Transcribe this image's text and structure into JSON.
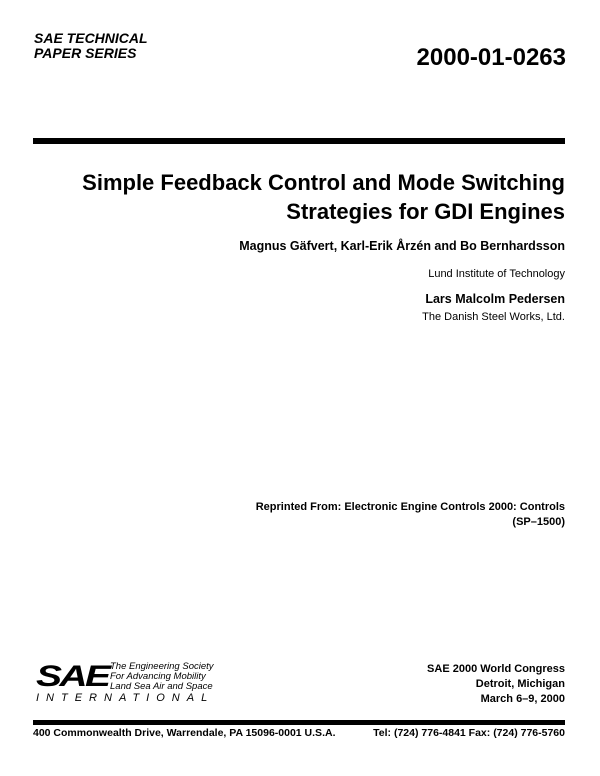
{
  "header": {
    "series_line1": "SAE TECHNICAL",
    "series_line2": "PAPER SERIES",
    "paper_number": "2000-01-0263"
  },
  "title": {
    "line1": "Simple Feedback Control and Mode Switching",
    "line2": "Strategies for GDI Engines"
  },
  "authors": [
    {
      "names": "Magnus Gäfvert, Karl-Erik Årzén and Bo Bernhardsson",
      "affiliation": "Lund Institute of Technology"
    },
    {
      "names": "Lars Malcolm Pedersen",
      "affiliation": "The Danish Steel Works, Ltd."
    }
  ],
  "reprint": {
    "line1": "Reprinted From:  Electronic Engine Controls 2000: Controls",
    "line2": "(SP–1500)"
  },
  "logo": {
    "mark": "SAE",
    "tagline1": "The Engineering Society",
    "tagline2": "For Advancing Mobility",
    "tagline3": "Land Sea Air and Space",
    "international": "INTERNATIONAL"
  },
  "conference": {
    "name": "SAE 2000 World Congress",
    "location": "Detroit, Michigan",
    "dates": "March 6–9, 2000"
  },
  "footer": {
    "address": "400 Commonwealth Drive, Warrendale, PA 15096-0001 U.S.A.",
    "contact": "Tel: (724) 776-4841  Fax: (724) 776-5760"
  }
}
